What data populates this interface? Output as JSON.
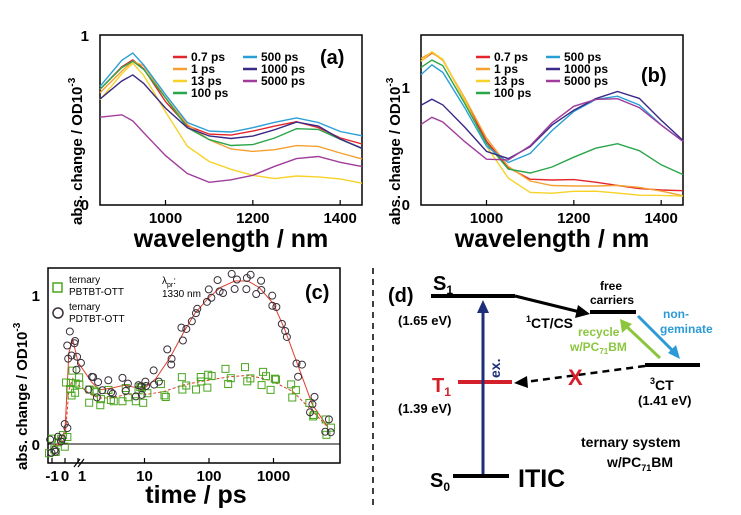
{
  "chart_data": [
    {
      "panel": "(a)",
      "type": "line",
      "xlabel": "wavelength / nm",
      "ylabel": "abs. change / OD10",
      "ylabel_exp": "-3",
      "xlim": [
        850,
        1450
      ],
      "ylim": [
        0,
        1
      ],
      "x_ticks": [
        "1000",
        "1200",
        "1400"
      ],
      "y_ticks": [
        "0",
        "1"
      ],
      "x": [
        850,
        900,
        925,
        950,
        1000,
        1050,
        1100,
        1150,
        1200,
        1250,
        1300,
        1350,
        1400,
        1450
      ],
      "series": [
        {
          "name": "0.7 ps",
          "color": "#e3262b",
          "values": [
            0.68,
            0.8,
            0.84,
            0.8,
            0.62,
            0.48,
            0.42,
            0.4,
            0.42,
            0.46,
            0.5,
            0.47,
            0.4,
            0.35
          ]
        },
        {
          "name": "1 ps",
          "color": "#f5a031",
          "values": [
            0.66,
            0.8,
            0.86,
            0.82,
            0.62,
            0.46,
            0.38,
            0.34,
            0.33,
            0.33,
            0.34,
            0.33,
            0.3,
            0.28
          ]
        },
        {
          "name": "13 ps",
          "color": "#f6d22a",
          "values": [
            0.62,
            0.76,
            0.82,
            0.76,
            0.56,
            0.36,
            0.26,
            0.2,
            0.16,
            0.15,
            0.18,
            0.18,
            0.16,
            0.12
          ]
        },
        {
          "name": "100 ps",
          "color": "#2aa64a",
          "values": [
            0.68,
            0.82,
            0.86,
            0.8,
            0.62,
            0.44,
            0.38,
            0.36,
            0.37,
            0.4,
            0.44,
            0.43,
            0.38,
            0.34
          ]
        },
        {
          "name": "500 ps",
          "color": "#2a9fd6",
          "values": [
            0.7,
            0.84,
            0.88,
            0.82,
            0.66,
            0.5,
            0.44,
            0.42,
            0.44,
            0.48,
            0.52,
            0.5,
            0.44,
            0.4
          ]
        },
        {
          "name": "1000 ps",
          "color": "#3b2a86",
          "values": [
            0.62,
            0.74,
            0.78,
            0.72,
            0.56,
            0.44,
            0.4,
            0.4,
            0.42,
            0.45,
            0.48,
            0.45,
            0.38,
            0.34
          ]
        },
        {
          "name": "5000 ps",
          "color": "#a03c9c",
          "values": [
            0.52,
            0.52,
            0.48,
            0.42,
            0.3,
            0.2,
            0.14,
            0.14,
            0.16,
            0.22,
            0.28,
            0.3,
            0.26,
            0.22
          ]
        }
      ]
    },
    {
      "panel": "(b)",
      "type": "line",
      "xlabel": "wavelength / nm",
      "ylabel": "abs. change / OD10",
      "ylabel_exp": "-3",
      "xlim": [
        850,
        1450
      ],
      "ylim": [
        0,
        1.3
      ],
      "x_ticks": [
        "1000",
        "1200",
        "1400"
      ],
      "y_ticks": [
        "0",
        "1"
      ],
      "x": [
        850,
        875,
        900,
        950,
        1000,
        1050,
        1100,
        1150,
        1200,
        1250,
        1300,
        1350,
        1400,
        1450
      ],
      "series": [
        {
          "name": "0.7 ps",
          "color": "#e3262b",
          "values": [
            1.1,
            1.15,
            1.1,
            0.8,
            0.5,
            0.3,
            0.2,
            0.18,
            0.18,
            0.17,
            0.16,
            0.14,
            0.12,
            0.1
          ]
        },
        {
          "name": "1 ps",
          "color": "#f5a031",
          "values": [
            1.12,
            1.18,
            1.12,
            0.82,
            0.5,
            0.28,
            0.18,
            0.16,
            0.16,
            0.15,
            0.14,
            0.12,
            0.1,
            0.08
          ]
        },
        {
          "name": "13 ps",
          "color": "#f6d22a",
          "values": [
            1.1,
            1.16,
            1.1,
            0.8,
            0.46,
            0.22,
            0.1,
            0.08,
            0.09,
            0.1,
            0.1,
            0.09,
            0.08,
            0.06
          ]
        },
        {
          "name": "100 ps",
          "color": "#2aa64a",
          "values": [
            1.05,
            1.12,
            1.08,
            0.78,
            0.46,
            0.26,
            0.24,
            0.3,
            0.38,
            0.44,
            0.46,
            0.4,
            0.3,
            0.24
          ]
        },
        {
          "name": "500 ps",
          "color": "#2a9fd6",
          "values": [
            1.0,
            1.06,
            1.0,
            0.74,
            0.46,
            0.34,
            0.4,
            0.56,
            0.7,
            0.8,
            0.84,
            0.78,
            0.62,
            0.48
          ]
        },
        {
          "name": "1000 ps",
          "color": "#3b2a86",
          "values": [
            0.76,
            0.82,
            0.78,
            0.6,
            0.4,
            0.34,
            0.44,
            0.62,
            0.74,
            0.82,
            0.86,
            0.8,
            0.64,
            0.5
          ]
        },
        {
          "name": "5000 ps",
          "color": "#a03c9c",
          "values": [
            0.62,
            0.66,
            0.62,
            0.48,
            0.36,
            0.36,
            0.46,
            0.62,
            0.74,
            0.8,
            0.82,
            0.76,
            0.62,
            0.48
          ]
        }
      ]
    },
    {
      "panel": "(c)",
      "type": "scatter",
      "xlabel": "time / ps",
      "ylabel": "abs. change / OD10",
      "ylabel_exp": "-3",
      "x_axis": "broken: linear from -1 to 1 ps, logarithmic from 1 to 10000 ps",
      "x_ticks": [
        "-1",
        "0",
        "1",
        "10",
        "100",
        "1000"
      ],
      "y_ticks": [
        "0",
        "1"
      ],
      "ylim": [
        -0.1,
        1.1
      ],
      "probe_label": "λ",
      "probe_subscript": "pr",
      "probe_value": "1330 nm",
      "series": [
        {
          "name": "ternary PBTBT-OTT",
          "legend_line1": "ternary",
          "legend_line2": "PBTBT-OTT",
          "marker": "square",
          "color": "#4aa61e",
          "points": [
            [
              -1,
              0
            ],
            [
              -0.5,
              0.01
            ],
            [
              0,
              0.05
            ],
            [
              0.3,
              0.35
            ],
            [
              0.6,
              0.42
            ],
            [
              1,
              0.38
            ],
            [
              1.5,
              0.32
            ],
            [
              2,
              0.3
            ],
            [
              3,
              0.3
            ],
            [
              5,
              0.32
            ],
            [
              8,
              0.33
            ],
            [
              10,
              0.32
            ],
            [
              20,
              0.34
            ],
            [
              40,
              0.38
            ],
            [
              70,
              0.4
            ],
            [
              100,
              0.41
            ],
            [
              200,
              0.43
            ],
            [
              400,
              0.44
            ],
            [
              700,
              0.42
            ],
            [
              1000,
              0.4
            ],
            [
              2000,
              0.34
            ],
            [
              4000,
              0.22
            ],
            [
              7000,
              0.12
            ]
          ]
        },
        {
          "name": "ternary PDTBT-OTT",
          "legend_line1": "ternary",
          "legend_line2": "PDTBT-OTT",
          "marker": "circle",
          "color": "#3a2f3a",
          "points": [
            [
              -1,
              0.0
            ],
            [
              -0.5,
              0.02
            ],
            [
              0,
              0.1
            ],
            [
              0.3,
              0.58
            ],
            [
              0.6,
              0.66
            ],
            [
              1,
              0.52
            ],
            [
              1.5,
              0.4
            ],
            [
              2,
              0.35
            ],
            [
              3,
              0.36
            ],
            [
              5,
              0.38
            ],
            [
              8,
              0.36
            ],
            [
              10,
              0.36
            ],
            [
              15,
              0.42
            ],
            [
              25,
              0.55
            ],
            [
              40,
              0.7
            ],
            [
              60,
              0.82
            ],
            [
              100,
              0.92
            ],
            [
              150,
              0.98
            ],
            [
              250,
              1.02
            ],
            [
              400,
              1.02
            ],
            [
              600,
              0.98
            ],
            [
              1000,
              0.88
            ],
            [
              1500,
              0.72
            ],
            [
              2500,
              0.48
            ],
            [
              4000,
              0.26
            ],
            [
              7000,
              0.12
            ]
          ]
        }
      ],
      "fit_color": "#e03c2c"
    }
  ],
  "labels": {
    "panel_a": "(a)",
    "panel_b": "(b)",
    "panel_c": "(c)",
    "panel_d": "(d)"
  },
  "diagram": {
    "s1": "S",
    "s1_sub": "1",
    "s1_energy": "(1.65 eV)",
    "t1": "T",
    "t1_sub": "1",
    "t1_energy": "(1.39 eV)",
    "s0": "S",
    "s0_sub": "0",
    "material": "ITIC",
    "ex": "ex.",
    "ct_cs_sup": "1",
    "ct_cs": "CT/CS",
    "free_line1": "free",
    "free_line2": "carriers",
    "ct3_sup": "3",
    "ct3": "CT",
    "ct3_energy": "(1.41 eV)",
    "recycle_line1": "recycle",
    "recycle_line2": "w/PC",
    "recycle_sub": "71",
    "recycle_tail": "BM",
    "nongem_line1": "non-",
    "nongem_line2": "geminate",
    "blocked": "X",
    "system_line1": "ternary system",
    "system_line2": "w/PC",
    "system_sub": "71",
    "system_tail": "BM",
    "colors": {
      "singlet": "#000000",
      "triplet": "#d3202a",
      "excitation": "#1d2f7a",
      "recycle": "#8cc63f",
      "nongeminate": "#2b9ad6",
      "blocked": "#d3202a"
    }
  }
}
